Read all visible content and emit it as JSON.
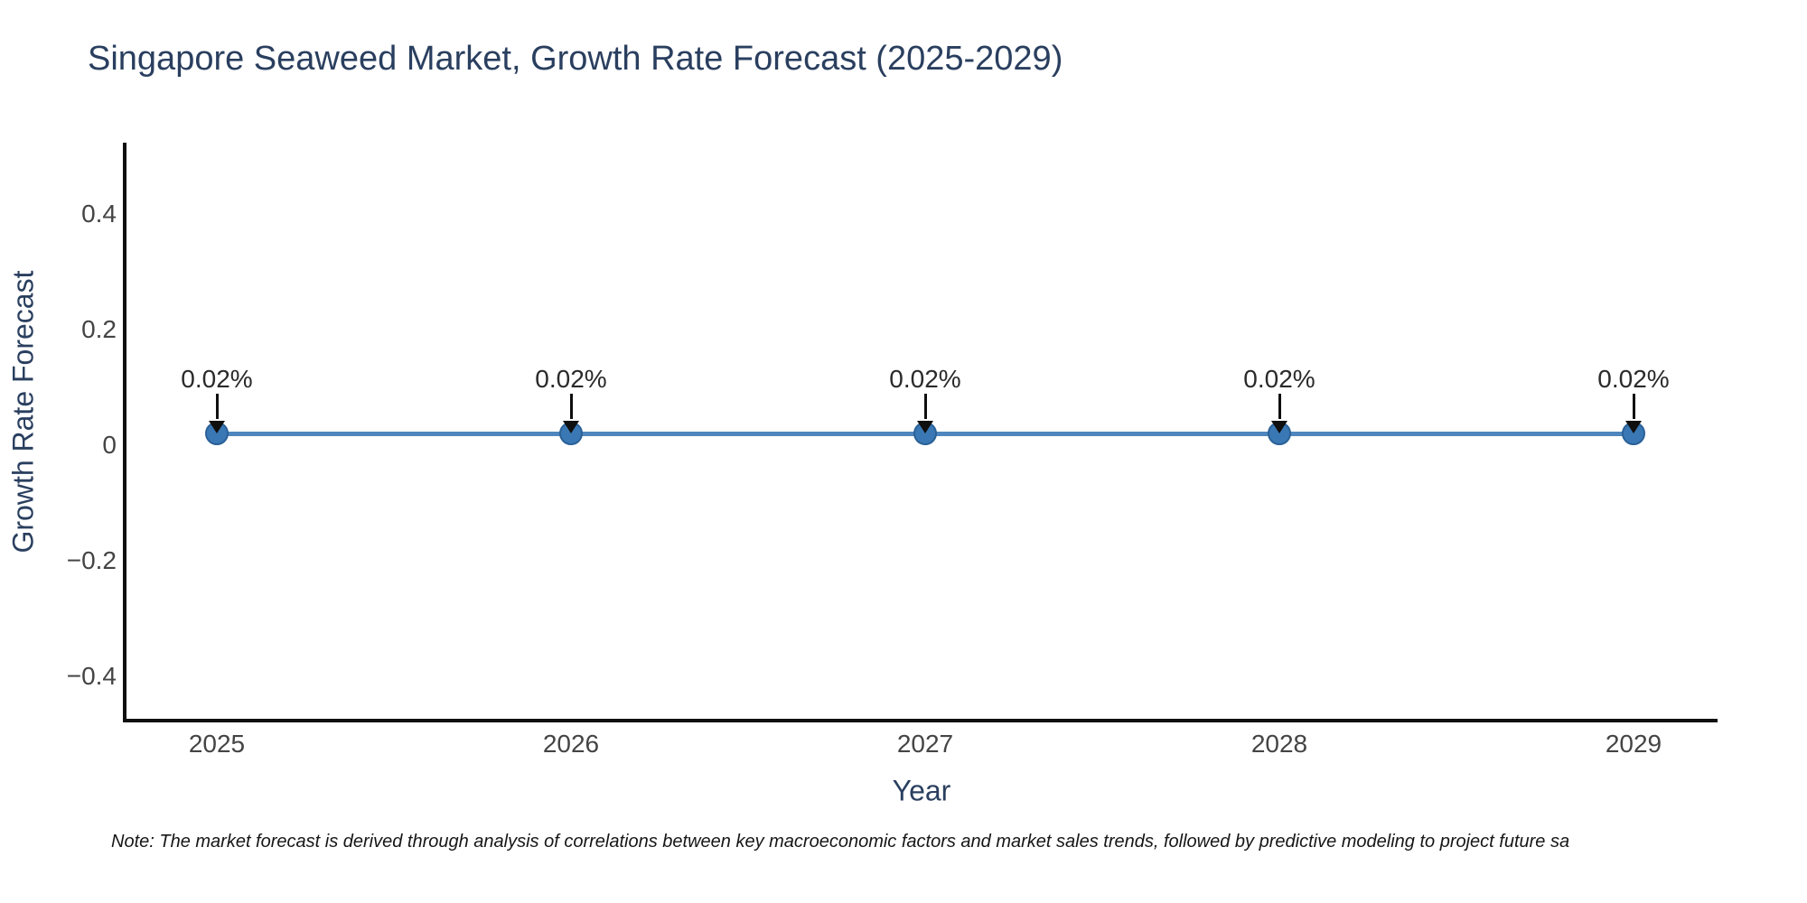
{
  "chart": {
    "title": "Singapore Seaweed Market, Growth Rate Forecast (2025-2029)",
    "note": "Note: The market forecast is derived through analysis of correlations between key macroeconomic factors and market sales trends, followed by predictive modeling to project future sa"
  },
  "chart_data": {
    "type": "line",
    "title": "Singapore Seaweed Market, Growth Rate Forecast (2025-2029)",
    "xlabel": "Year",
    "ylabel": "Growth Rate Forecast",
    "categories": [
      "2025",
      "2026",
      "2027",
      "2028",
      "2029"
    ],
    "series": [
      {
        "name": "Growth Rate Forecast",
        "values": [
          0.02,
          0.02,
          0.02,
          0.02,
          0.02
        ],
        "point_labels": [
          "0.02%",
          "0.02%",
          "0.02%",
          "0.02%",
          "0.02%"
        ]
      }
    ],
    "yticks": [
      {
        "label": "0.4",
        "value": 0.4
      },
      {
        "label": "0.2",
        "value": 0.2
      },
      {
        "label": "0",
        "value": 0
      },
      {
        "label": "−0.2",
        "value": -0.2
      },
      {
        "label": "−0.4",
        "value": -0.4
      }
    ],
    "ylim": [
      -0.48,
      0.52
    ],
    "grid": false,
    "legend_position": "none",
    "annotations_have_arrows": true,
    "colors": {
      "line": "#4e86bd",
      "marker_fill": "#3a78b5",
      "marker_edge": "#2b6197",
      "arrow": "#0f0f0f",
      "axis_line": "#101010",
      "title_text": "#2a3f5f",
      "tick_text": "#444444",
      "annotation_text": "#2a2a2a",
      "background": "#ffffff"
    }
  }
}
